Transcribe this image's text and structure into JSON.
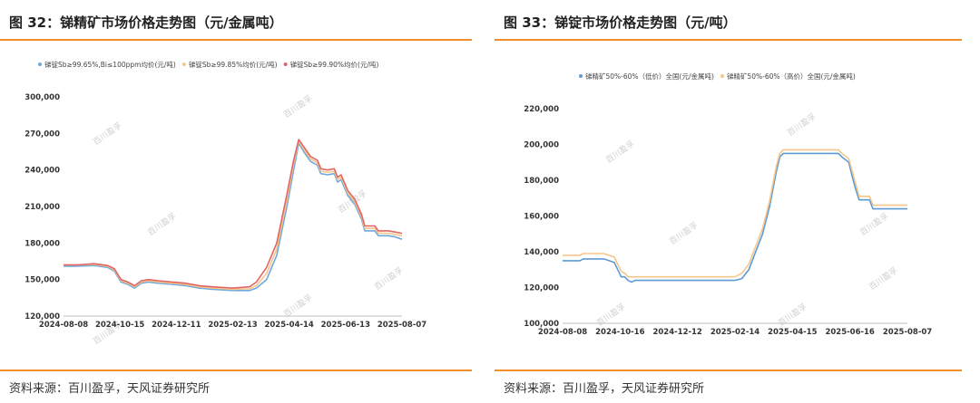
{
  "left": {
    "title": "图 32：锑精矿市场价格走势图（元/金属吨）",
    "source": "资料来源：百川盈孚，天风证券研究所"
  },
  "right": {
    "title": "图 33：锑锭市场价格走势图（元/吨）",
    "source": "资料来源：百川盈孚，天风证券研究所"
  },
  "watermark": "百川盈孚",
  "chart_data": [
    {
      "type": "line",
      "title": "",
      "legend_position": "top",
      "x_labels": [
        "2024-08-08",
        "2024-10-15",
        "2024-12-11",
        "2025-02-13",
        "2025-04-14",
        "2025-06-13",
        "2025-08-07"
      ],
      "ylim": [
        120000,
        300000
      ],
      "yticks": [
        120000,
        150000,
        180000,
        210000,
        240000,
        270000,
        300000
      ],
      "ytick_labels": [
        "120,000",
        "150,000",
        "180,000",
        "210,000",
        "240,000",
        "270,000",
        "300,000"
      ],
      "grid": false,
      "series": [
        {
          "name": "锑锭Sb≥99.65%,Bi≤100ppm均价(元/吨)",
          "color": "#6fa8dc",
          "points": [
            [
              0,
              161000
            ],
            [
              0.04,
              161000
            ],
            [
              0.09,
              161500
            ],
            [
              0.13,
              160000
            ],
            [
              0.15,
              157000
            ],
            [
              0.17,
              148000
            ],
            [
              0.19,
              146000
            ],
            [
              0.21,
              143000
            ],
            [
              0.23,
              147000
            ],
            [
              0.25,
              148000
            ],
            [
              0.28,
              147000
            ],
            [
              0.32,
              146000
            ],
            [
              0.36,
              145000
            ],
            [
              0.4,
              143000
            ],
            [
              0.44,
              142000
            ],
            [
              0.5,
              141000
            ],
            [
              0.55,
              141000
            ],
            [
              0.57,
              143000
            ],
            [
              0.6,
              150000
            ],
            [
              0.63,
              170000
            ],
            [
              0.66,
              210000
            ],
            [
              0.68,
              240000
            ],
            [
              0.695,
              262000
            ],
            [
              0.71,
              255000
            ],
            [
              0.73,
              247000
            ],
            [
              0.75,
              244000
            ],
            [
              0.76,
              237000
            ],
            [
              0.78,
              236000
            ],
            [
              0.8,
              237000
            ],
            [
              0.81,
              230000
            ],
            [
              0.82,
              232000
            ],
            [
              0.84,
              219000
            ],
            [
              0.86,
              212000
            ],
            [
              0.88,
              200000
            ],
            [
              0.89,
              190000
            ],
            [
              0.92,
              190000
            ],
            [
              0.93,
              186000
            ],
            [
              0.96,
              186000
            ],
            [
              0.98,
              185000
            ],
            [
              1.0,
              183000
            ]
          ]
        },
        {
          "name": "锑锭Sb≥99.85%均价(元/吨)",
          "color": "#f5c58a",
          "points": [
            [
              0,
              162000
            ],
            [
              0.04,
              162000
            ],
            [
              0.09,
              162500
            ],
            [
              0.13,
              161000
            ],
            [
              0.15,
              158000
            ],
            [
              0.17,
              149000
            ],
            [
              0.19,
              147000
            ],
            [
              0.21,
              144000
            ],
            [
              0.23,
              148000
            ],
            [
              0.25,
              149000
            ],
            [
              0.28,
              148000
            ],
            [
              0.32,
              147000
            ],
            [
              0.36,
              146000
            ],
            [
              0.4,
              144000
            ],
            [
              0.44,
              143000
            ],
            [
              0.5,
              142000
            ],
            [
              0.55,
              142500
            ],
            [
              0.57,
              145000
            ],
            [
              0.6,
              155000
            ],
            [
              0.63,
              175000
            ],
            [
              0.66,
              215000
            ],
            [
              0.68,
              245000
            ],
            [
              0.695,
              264000
            ],
            [
              0.71,
              257000
            ],
            [
              0.73,
              249000
            ],
            [
              0.75,
              246000
            ],
            [
              0.76,
              239000
            ],
            [
              0.78,
              238000
            ],
            [
              0.8,
              239000
            ],
            [
              0.81,
              232000
            ],
            [
              0.82,
              234000
            ],
            [
              0.84,
              221000
            ],
            [
              0.86,
              214000
            ],
            [
              0.88,
              202000
            ],
            [
              0.89,
              192000
            ],
            [
              0.92,
              192000
            ],
            [
              0.93,
              188000
            ],
            [
              0.96,
              188000
            ],
            [
              0.98,
              187000
            ],
            [
              1.0,
              186000
            ]
          ]
        },
        {
          "name": "锑锭Sb≥99.90%均价(元/吨)",
          "color": "#e06666",
          "points": [
            [
              0,
              162000
            ],
            [
              0.04,
              162000
            ],
            [
              0.09,
              163000
            ],
            [
              0.13,
              161500
            ],
            [
              0.15,
              159000
            ],
            [
              0.17,
              150000
            ],
            [
              0.19,
              148000
            ],
            [
              0.21,
              145000
            ],
            [
              0.23,
              149000
            ],
            [
              0.25,
              150000
            ],
            [
              0.28,
              149000
            ],
            [
              0.32,
              148000
            ],
            [
              0.36,
              147000
            ],
            [
              0.4,
              145000
            ],
            [
              0.44,
              144000
            ],
            [
              0.5,
              143000
            ],
            [
              0.55,
              144000
            ],
            [
              0.57,
              148000
            ],
            [
              0.6,
              160000
            ],
            [
              0.63,
              180000
            ],
            [
              0.66,
              220000
            ],
            [
              0.68,
              248000
            ],
            [
              0.695,
              265000
            ],
            [
              0.71,
              259000
            ],
            [
              0.73,
              251000
            ],
            [
              0.75,
              248000
            ],
            [
              0.76,
              241000
            ],
            [
              0.78,
              240000
            ],
            [
              0.8,
              241000
            ],
            [
              0.81,
              234000
            ],
            [
              0.82,
              236000
            ],
            [
              0.84,
              223000
            ],
            [
              0.86,
              216000
            ],
            [
              0.88,
              204000
            ],
            [
              0.89,
              194000
            ],
            [
              0.92,
              194000
            ],
            [
              0.93,
              190000
            ],
            [
              0.96,
              190000
            ],
            [
              0.98,
              189000
            ],
            [
              1.0,
              188000
            ]
          ]
        }
      ]
    },
    {
      "type": "line",
      "title": "",
      "legend_position": "top",
      "x_labels": [
        "2024-08-08",
        "2024-10-16",
        "2024-12-12",
        "2025-02-14",
        "2025-04-15",
        "2025-06-16",
        "2025-08-07"
      ],
      "ylim": [
        100000,
        220000
      ],
      "yticks": [
        100000,
        120000,
        140000,
        160000,
        180000,
        200000,
        220000
      ],
      "ytick_labels": [
        "100,000",
        "120,000",
        "140,000",
        "160,000",
        "180,000",
        "200,000",
        "220,000"
      ],
      "grid": false,
      "series": [
        {
          "name": "锑精矿50%-60%（低价）全国(元/金属吨)",
          "color": "#5b9bd5",
          "points": [
            [
              0,
              135000
            ],
            [
              0.05,
              135000
            ],
            [
              0.06,
              136000
            ],
            [
              0.12,
              136000
            ],
            [
              0.15,
              134000
            ],
            [
              0.16,
              130000
            ],
            [
              0.17,
              126000
            ],
            [
              0.18,
              126000
            ],
            [
              0.19,
              124000
            ],
            [
              0.2,
              123000
            ],
            [
              0.21,
              124000
            ],
            [
              0.5,
              124000
            ],
            [
              0.52,
              125000
            ],
            [
              0.54,
              130000
            ],
            [
              0.56,
              140000
            ],
            [
              0.58,
              150000
            ],
            [
              0.6,
              165000
            ],
            [
              0.62,
              185000
            ],
            [
              0.63,
              193000
            ],
            [
              0.64,
              195000
            ],
            [
              0.8,
              195000
            ],
            [
              0.81,
              193000
            ],
            [
              0.83,
              190000
            ],
            [
              0.84,
              182000
            ],
            [
              0.85,
              175000
            ],
            [
              0.86,
              169000
            ],
            [
              0.89,
              169000
            ],
            [
              0.9,
              164000
            ],
            [
              1.0,
              164000
            ]
          ]
        },
        {
          "name": "锑精矿50%-60%（高价）全国(元/金属吨)",
          "color": "#f5c58a",
          "points": [
            [
              0,
              138000
            ],
            [
              0.05,
              138000
            ],
            [
              0.06,
              139000
            ],
            [
              0.12,
              139000
            ],
            [
              0.15,
              137000
            ],
            [
              0.16,
              133000
            ],
            [
              0.17,
              129000
            ],
            [
              0.18,
              128000
            ],
            [
              0.19,
              126000
            ],
            [
              0.2,
              126000
            ],
            [
              0.21,
              126000
            ],
            [
              0.5,
              126000
            ],
            [
              0.52,
              128000
            ],
            [
              0.54,
              133000
            ],
            [
              0.56,
              143000
            ],
            [
              0.58,
              153000
            ],
            [
              0.6,
              168000
            ],
            [
              0.62,
              188000
            ],
            [
              0.63,
              195000
            ],
            [
              0.64,
              197000
            ],
            [
              0.8,
              197000
            ],
            [
              0.81,
              195000
            ],
            [
              0.83,
              192000
            ],
            [
              0.84,
              185000
            ],
            [
              0.85,
              178000
            ],
            [
              0.86,
              171000
            ],
            [
              0.89,
              171000
            ],
            [
              0.9,
              166000
            ],
            [
              1.0,
              166000
            ]
          ]
        }
      ]
    }
  ]
}
